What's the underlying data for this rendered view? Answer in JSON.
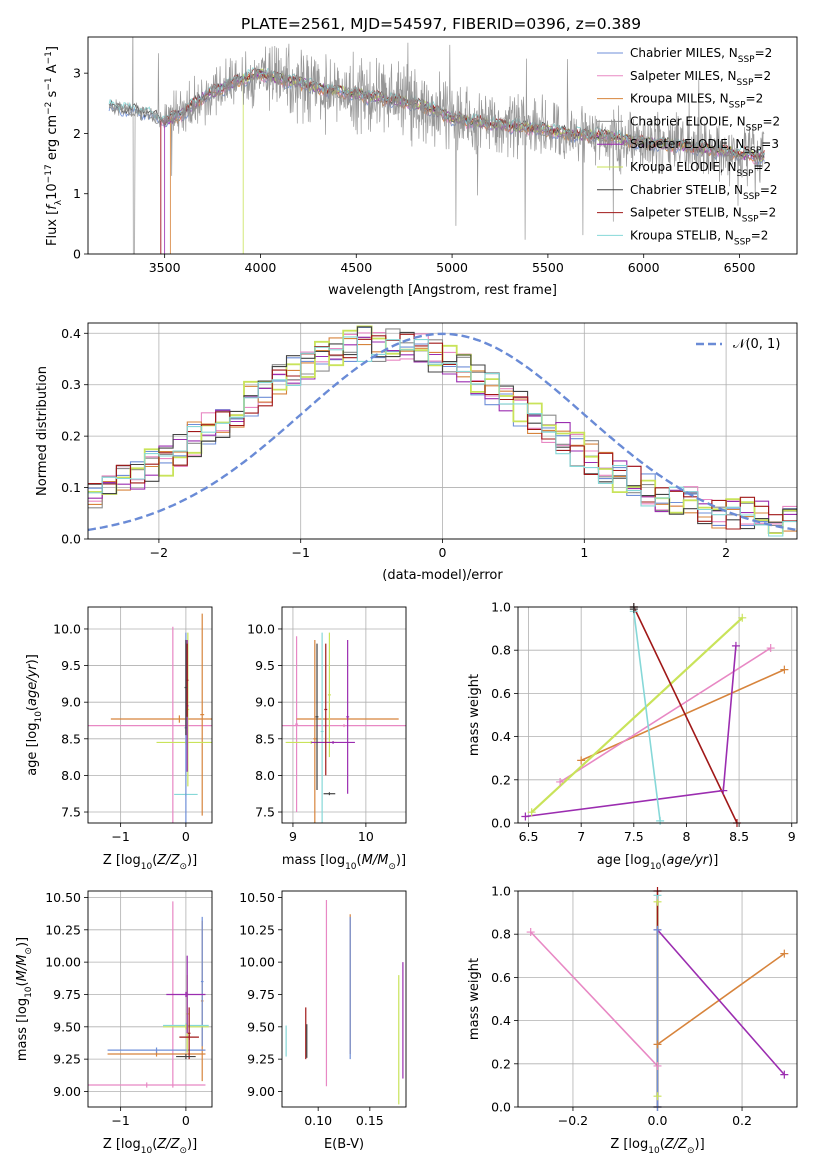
{
  "figure": {
    "title": "PLATE=2561, MJD=54597, FIBERID=0396, z=0.389"
  },
  "colors": {
    "chabrier_miles": "#6f8fd8",
    "salpeter_miles": "#e888c4",
    "kroupa_miles": "#d7843c",
    "chabrier_elodie": "#8c8c8c",
    "salpeter_elodie": "#9b2db0",
    "kroupa_elodie": "#c9e35a",
    "chabrier_stelib": "#444444",
    "salpeter_stelib": "#a01818",
    "kroupa_stelib": "#86d8d8",
    "normal": "#6a8bd6",
    "grid": "#b0b0b0"
  },
  "chart_data": [
    {
      "id": "spectrum",
      "type": "line",
      "title": "PLATE=2561, MJD=54597, FIBERID=0396, z=0.389",
      "xlabel": "wavelength [Angstrom, rest frame]",
      "ylabel": "Flux [f_λ 10^-17 erg cm^-2 s^-1 A^-1]",
      "ylabel_parts": [
        "Flux [",
        "f",
        "λ",
        "10",
        "−17",
        " erg cm",
        "−2",
        " s",
        "−1",
        " A",
        "−1",
        "]"
      ],
      "xlim": [
        3100,
        6800
      ],
      "ylim": [
        0,
        3.6
      ],
      "xticks": [
        3500,
        4000,
        4500,
        5000,
        5500,
        6000,
        6500
      ],
      "yticks": [
        0,
        1,
        2,
        3
      ],
      "grid": false,
      "legend_position": "top-right",
      "continuum_x": [
        3200,
        3300,
        3400,
        3500,
        3600,
        3700,
        3800,
        3900,
        4000,
        4100,
        4200,
        4300,
        4400,
        4500,
        4600,
        4700,
        4800,
        4900,
        5000,
        5200,
        5400,
        5600,
        5800,
        6000,
        6200,
        6400,
        6630
      ],
      "continuum_y": [
        2.45,
        2.4,
        2.35,
        2.2,
        2.35,
        2.6,
        2.75,
        2.9,
        3.0,
        2.9,
        2.85,
        2.75,
        2.7,
        2.65,
        2.6,
        2.55,
        2.5,
        2.4,
        2.25,
        2.15,
        2.1,
        2.0,
        1.95,
        1.85,
        1.8,
        1.7,
        1.6
      ],
      "series": [
        {
          "name": "Chabrier MILES, N_SSP=2",
          "label_main": "Chabrier MILES, N",
          "label_sub": "SSP",
          "label_tail": "=2",
          "color": "#6f8fd8"
        },
        {
          "name": "Salpeter MILES, N_SSP=2",
          "label_main": "Salpeter MILES, N",
          "label_sub": "SSP",
          "label_tail": "=2",
          "color": "#e888c4"
        },
        {
          "name": "Kroupa MILES, N_SSP=2",
          "label_main": "Kroupa MILES, N",
          "label_sub": "SSP",
          "label_tail": "=2",
          "color": "#d7843c"
        },
        {
          "name": "Chabrier ELODIE, N_SSP=2",
          "label_main": "Chabrier ELODIE, N",
          "label_sub": "SSP",
          "label_tail": "=2",
          "color": "#8c8c8c"
        },
        {
          "name": "Salpeter ELODIE, N_SSP=3",
          "label_main": "Salpeter ELODIE, N",
          "label_sub": "SSP",
          "label_tail": "=3",
          "color": "#9b2db0"
        },
        {
          "name": "Kroupa ELODIE, N_SSP=2",
          "label_main": "Kroupa ELODIE, N",
          "label_sub": "SSP",
          "label_tail": "=2",
          "color": "#c9e35a"
        },
        {
          "name": "Chabrier STELIB, N_SSP=2",
          "label_main": "Chabrier STELIB, N",
          "label_sub": "SSP",
          "label_tail": "=2",
          "color": "#444444"
        },
        {
          "name": "Salpeter STELIB, N_SSP=2",
          "label_main": "Salpeter STELIB, N",
          "label_sub": "SSP",
          "label_tail": "=2",
          "color": "#a01818"
        },
        {
          "name": "Kroupa STELIB, N_SSP=2",
          "label_main": "Kroupa STELIB, N",
          "label_sub": "SSP",
          "label_tail": "=2",
          "color": "#86d8d8"
        }
      ]
    },
    {
      "id": "residuals",
      "type": "line",
      "xlabel": "(data-model)/error",
      "ylabel": "Normed distribution",
      "xlim": [
        -2.5,
        2.5
      ],
      "ylim": [
        0,
        0.42
      ],
      "xticks": [
        -2,
        -1,
        0,
        1,
        2
      ],
      "yticks": [
        0.0,
        0.1,
        0.2,
        0.3,
        0.4
      ],
      "grid": true,
      "legend_position": "top-right",
      "legend_label": "𝒩(0, 1)",
      "normal_mean": 0,
      "normal_sigma": 1,
      "bins": 50,
      "skew_mean": -0.45,
      "skew_sigma": 1.05,
      "skew_base": 0.03
    },
    {
      "id": "age_vs_Z",
      "type": "scatter",
      "xlabel": "Z [log10(Z/Z⊙)]",
      "ylabel": "age  [log10(age/yr)]",
      "xlim": [
        -1.5,
        0.4
      ],
      "ylim": [
        7.35,
        10.3
      ],
      "xticks": [
        -1,
        0
      ],
      "yticks": [
        7.5,
        8.0,
        8.5,
        9.0,
        9.5,
        10.0
      ],
      "grid": true,
      "points": [
        {
          "x": -0.2,
          "xerr": 1.55,
          "y": 8.68,
          "yerr": 1.35,
          "c": "#e888c4"
        },
        {
          "x": 0.25,
          "xerr": 0.03,
          "y": 8.83,
          "yerr": 1.38,
          "c": "#d7843c"
        },
        {
          "x": -0.1,
          "xerr": 1.05,
          "y": 8.77,
          "yerr": 0.05,
          "c": "#d7843c"
        },
        {
          "x": 0.0,
          "xerr": 0.45,
          "y": 8.45,
          "yerr": 0.03,
          "c": "#c9e35a"
        },
        {
          "x": 0.03,
          "xerr": 0.02,
          "y": 8.9,
          "yerr": 1.05,
          "c": "#c9e35a"
        },
        {
          "x": 0.0,
          "xerr": 0.18,
          "y": 7.74,
          "yerr": 0.02,
          "c": "#86d8d8"
        },
        {
          "x": 0.0,
          "xerr": 0.02,
          "y": 8.65,
          "yerr": 1.3,
          "c": "#6f8fd8"
        },
        {
          "x": 0.02,
          "xerr": 0.02,
          "y": 8.95,
          "yerr": 0.9,
          "c": "#9b2db0"
        },
        {
          "x": 0.02,
          "xerr": 0.02,
          "y": 9.3,
          "yerr": 0.5,
          "c": "#a01818"
        },
        {
          "x": 0.0,
          "xerr": 0.02,
          "y": 9.2,
          "yerr": 0.65,
          "c": "#444444"
        }
      ]
    },
    {
      "id": "age_vs_mass",
      "type": "scatter",
      "xlabel": "mass [log10(M/M⊙)]",
      "xlim": [
        8.85,
        10.55
      ],
      "ylim": [
        7.35,
        10.3
      ],
      "xticks": [
        9,
        10
      ],
      "yticks": [
        7.5,
        8.0,
        8.5,
        9.0,
        9.5,
        10.0
      ],
      "grid": true,
      "points": [
        {
          "x": 9.05,
          "xerr": 0.02,
          "y": 8.7,
          "yerr": 1.2,
          "c": "#e888c4"
        },
        {
          "x": 9.7,
          "xerr": 0.95,
          "y": 8.68,
          "yerr": 0.02,
          "c": "#e888c4"
        },
        {
          "x": 9.3,
          "xerr": 0.02,
          "y": 8.5,
          "yerr": 1.35,
          "c": "#d7843c"
        },
        {
          "x": 9.75,
          "xerr": 0.7,
          "y": 8.77,
          "yerr": 0.02,
          "c": "#d7843c"
        },
        {
          "x": 9.5,
          "xerr": 0.02,
          "y": 9.1,
          "yerr": 0.85,
          "c": "#c9e35a"
        },
        {
          "x": 9.25,
          "xerr": 0.35,
          "y": 8.45,
          "yerr": 0.02,
          "c": "#c9e35a"
        },
        {
          "x": 9.4,
          "xerr": 0.02,
          "y": 8.6,
          "yerr": 1.35,
          "c": "#86d8d8"
        },
        {
          "x": 9.55,
          "xerr": 0.3,
          "y": 8.45,
          "yerr": 0.02,
          "c": "#9b2db0"
        },
        {
          "x": 9.75,
          "xerr": 0.02,
          "y": 8.8,
          "yerr": 1.05,
          "c": "#9b2db0"
        },
        {
          "x": 9.33,
          "xerr": 0.02,
          "y": 8.8,
          "yerr": 1.0,
          "c": "#444444"
        },
        {
          "x": 9.45,
          "xerr": 0.02,
          "y": 8.9,
          "yerr": 0.9,
          "c": "#a01818"
        },
        {
          "x": 9.5,
          "xerr": 0.08,
          "y": 7.75,
          "yerr": 0.02,
          "c": "#444444"
        }
      ]
    },
    {
      "id": "mass_weight_vs_age",
      "type": "line",
      "xlabel": "age  [log10(age/yr)]",
      "ylabel": "mass weight",
      "xlim": [
        6.4,
        9.05
      ],
      "ylim": [
        0,
        1
      ],
      "xticks": [
        6.5,
        7.0,
        7.5,
        8.0,
        8.5,
        9.0
      ],
      "yticks": [
        0.0,
        0.2,
        0.4,
        0.6,
        0.8,
        1.0
      ],
      "grid": true,
      "series": [
        {
          "c": "#d7843c",
          "x": [
            7.0,
            8.93
          ],
          "y": [
            0.29,
            0.71
          ]
        },
        {
          "c": "#e888c4",
          "x": [
            6.8,
            8.8
          ],
          "y": [
            0.19,
            0.81
          ]
        },
        {
          "c": "#c9e35a",
          "x": [
            6.53,
            8.53
          ],
          "y": [
            0.05,
            0.95
          ]
        },
        {
          "c": "#9b2db0",
          "x": [
            6.47,
            8.35,
            8.47
          ],
          "y": [
            0.03,
            0.15,
            0.82
          ]
        },
        {
          "c": "#86d8d8",
          "x": [
            7.5,
            7.75
          ],
          "y": [
            0.98,
            0.01
          ]
        },
        {
          "c": "#a01818",
          "x": [
            7.5,
            8.48
          ],
          "y": [
            1.0,
            0.0
          ]
        },
        {
          "c": "#444444",
          "x": [
            7.5,
            7.5
          ],
          "y": [
            1.0,
            0.99
          ]
        }
      ]
    },
    {
      "id": "mass_vs_Z",
      "type": "scatter",
      "xlabel": "Z [log10(Z/Z⊙)]",
      "ylabel": "mass [log10(M/M⊙)]",
      "xlim": [
        -1.5,
        0.4
      ],
      "ylim": [
        8.88,
        10.55
      ],
      "xticks": [
        -1,
        0
      ],
      "yticks": [
        9.0,
        9.25,
        9.5,
        9.75,
        10.0,
        10.25,
        10.5
      ],
      "grid": true,
      "points": [
        {
          "x": -0.2,
          "xerr": 0.02,
          "y": 9.75,
          "yerr": 0.72,
          "c": "#e888c4"
        },
        {
          "x": -0.6,
          "xerr": 0.9,
          "y": 9.05,
          "yerr": 0.02,
          "c": "#e888c4"
        },
        {
          "x": 0.25,
          "xerr": 0.02,
          "y": 9.7,
          "yerr": 0.62,
          "c": "#d7843c"
        },
        {
          "x": -0.45,
          "xerr": 0.75,
          "y": 9.29,
          "yerr": 0.02,
          "c": "#d7843c"
        },
        {
          "x": 0.25,
          "xerr": 0.02,
          "y": 9.85,
          "yerr": 0.5,
          "c": "#6f8fd8"
        },
        {
          "x": -0.45,
          "xerr": 0.75,
          "y": 9.32,
          "yerr": 0.02,
          "c": "#6f8fd8"
        },
        {
          "x": 0.0,
          "xerr": 0.35,
          "y": 9.51,
          "yerr": 0.02,
          "c": "#86d8d8"
        },
        {
          "x": 0.02,
          "xerr": 0.02,
          "y": 9.6,
          "yerr": 0.3,
          "c": "#c9e35a"
        },
        {
          "x": 0.0,
          "xerr": 0.35,
          "y": 9.5,
          "yerr": 0.02,
          "c": "#c9e35a"
        },
        {
          "x": 0.0,
          "xerr": 0.3,
          "y": 9.75,
          "yerr": 0.02,
          "c": "#9b2db0"
        },
        {
          "x": 0.02,
          "xerr": 0.02,
          "y": 9.75,
          "yerr": 0.3,
          "c": "#9b2db0"
        },
        {
          "x": 0.05,
          "xerr": 0.15,
          "y": 9.42,
          "yerr": 0.02,
          "c": "#a01818"
        },
        {
          "x": 0.05,
          "xerr": 0.02,
          "y": 9.45,
          "yerr": 0.2,
          "c": "#a01818"
        },
        {
          "x": 0.0,
          "xerr": 0.15,
          "y": 9.27,
          "yerr": 0.02,
          "c": "#444444"
        }
      ]
    },
    {
      "id": "mass_vs_EBV",
      "type": "scatter",
      "xlabel": "E(B-V)",
      "xlim": [
        0.065,
        0.185
      ],
      "ylim": [
        8.88,
        10.55
      ],
      "xticks": [
        0.1,
        0.15
      ],
      "xtick_labels": [
        "0.10",
        "0.15"
      ],
      "yticks": [
        9.0,
        9.25,
        9.5,
        9.75,
        10.0,
        10.25,
        10.5
      ],
      "grid": false,
      "points": [
        {
          "x": 0.069,
          "xerr": 0,
          "y": 9.39,
          "yerr": 0.12,
          "c": "#86d8d8"
        },
        {
          "x": 0.088,
          "xerr": 0,
          "y": 9.45,
          "yerr": 0.2,
          "c": "#a01818"
        },
        {
          "x": 0.089,
          "xerr": 0,
          "y": 9.39,
          "yerr": 0.13,
          "c": "#444444"
        },
        {
          "x": 0.108,
          "xerr": 0,
          "y": 9.76,
          "yerr": 0.72,
          "c": "#e888c4"
        },
        {
          "x": 0.131,
          "xerr": 0,
          "y": 9.83,
          "yerr": 0.54,
          "c": "#d7843c"
        },
        {
          "x": 0.131,
          "xerr": 0,
          "y": 9.8,
          "yerr": 0.55,
          "c": "#6f8fd8"
        },
        {
          "x": 0.178,
          "xerr": 0,
          "y": 9.4,
          "yerr": 0.5,
          "c": "#c9e35a"
        },
        {
          "x": 0.182,
          "xerr": 0,
          "y": 9.55,
          "yerr": 0.45,
          "c": "#9b2db0"
        }
      ]
    },
    {
      "id": "mass_weight_vs_Z",
      "type": "line",
      "xlabel": "Z [log10(Z/Z⊙)]",
      "ylabel": "mass weight",
      "xlim": [
        -0.33,
        0.33
      ],
      "ylim": [
        0,
        1
      ],
      "xticks": [
        -0.2,
        0.0,
        0.2
      ],
      "xtick_labels": [
        "−0.2",
        "0.0",
        "0.2"
      ],
      "yticks": [
        0.0,
        0.2,
        0.4,
        0.6,
        0.8,
        1.0
      ],
      "grid": true,
      "series": [
        {
          "c": "#e888c4",
          "x": [
            -0.3,
            0.0
          ],
          "y": [
            0.81,
            0.19
          ]
        },
        {
          "c": "#d7843c",
          "x": [
            0.0,
            0.3
          ],
          "y": [
            0.29,
            0.71
          ]
        },
        {
          "c": "#9b2db0",
          "x": [
            0.0,
            0.3
          ],
          "y": [
            0.82,
            0.15
          ]
        },
        {
          "c": "#c9e35a",
          "x": [
            0.0,
            0.0
          ],
          "y": [
            0.05,
            0.95
          ]
        },
        {
          "c": "#86d8d8",
          "x": [
            0.0,
            0.0
          ],
          "y": [
            0.0,
            0.98
          ]
        },
        {
          "c": "#a01818",
          "x": [
            0.0,
            0.0
          ],
          "y": [
            0.0,
            1.0
          ]
        },
        {
          "c": "#6f8fd8",
          "x": [
            0.0,
            0.0
          ],
          "y": [
            0.0,
            0.82
          ]
        }
      ]
    }
  ]
}
